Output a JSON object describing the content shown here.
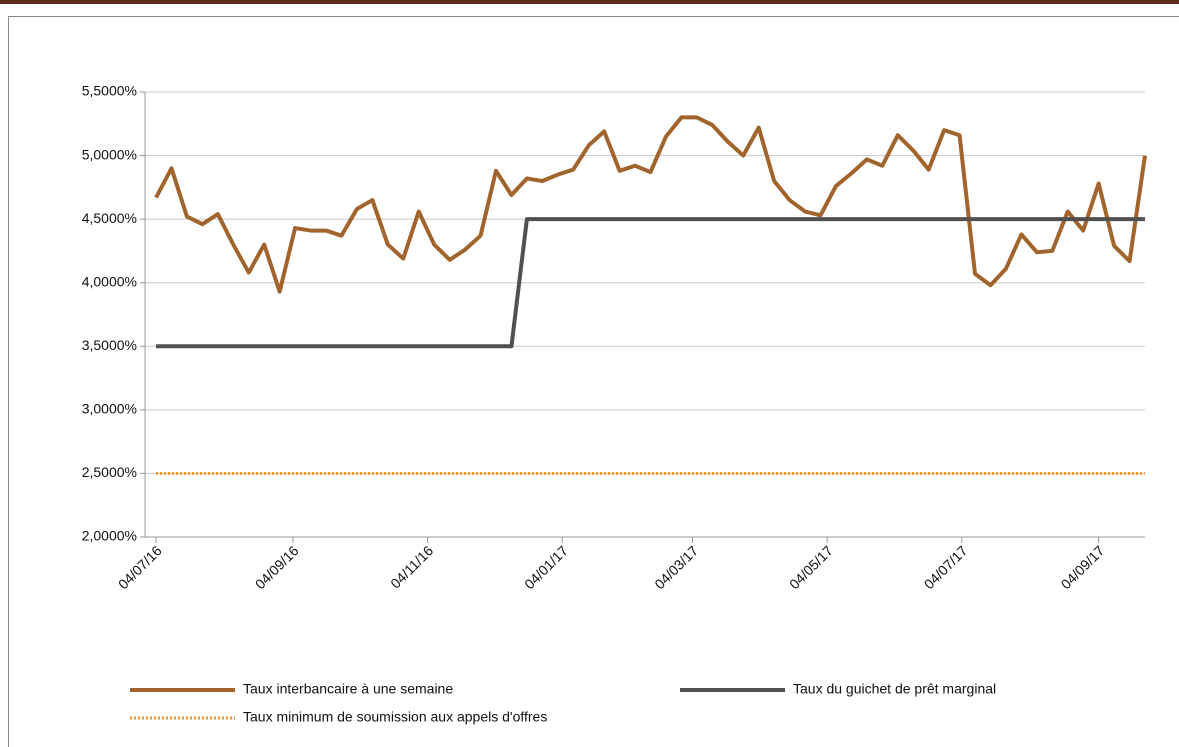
{
  "chart_data": {
    "type": "line",
    "x": [
      "2016-07-04",
      "2016-07-11",
      "2016-07-18",
      "2016-07-25",
      "2016-08-01",
      "2016-08-08",
      "2016-08-15",
      "2016-08-22",
      "2016-08-29",
      "2016-09-05",
      "2016-09-12",
      "2016-09-19",
      "2016-09-26",
      "2016-10-03",
      "2016-10-10",
      "2016-10-17",
      "2016-10-24",
      "2016-10-31",
      "2016-11-07",
      "2016-11-14",
      "2016-11-21",
      "2016-11-28",
      "2016-12-05",
      "2016-12-12",
      "2016-12-19",
      "2016-12-26",
      "2017-01-02",
      "2017-01-09",
      "2017-01-16",
      "2017-01-23",
      "2017-01-30",
      "2017-02-06",
      "2017-02-13",
      "2017-02-20",
      "2017-02-27",
      "2017-03-06",
      "2017-03-13",
      "2017-03-20",
      "2017-03-27",
      "2017-04-03",
      "2017-04-10",
      "2017-04-17",
      "2017-04-24",
      "2017-05-01",
      "2017-05-08",
      "2017-05-15",
      "2017-05-22",
      "2017-05-29",
      "2017-06-05",
      "2017-06-12",
      "2017-06-19",
      "2017-06-26",
      "2017-07-03",
      "2017-07-10",
      "2017-07-17",
      "2017-07-24",
      "2017-07-31",
      "2017-08-07",
      "2017-08-14",
      "2017-08-21",
      "2017-08-28",
      "2017-09-04",
      "2017-09-11",
      "2017-09-18",
      "2017-09-25"
    ],
    "series": [
      {
        "name": "Taux interbancaire à une semaine",
        "color": "#a0642c",
        "style": "solid",
        "values": [
          4.67,
          4.9,
          4.52,
          4.46,
          4.54,
          4.3,
          4.08,
          4.3,
          3.93,
          4.43,
          4.41,
          4.41,
          4.37,
          4.58,
          4.65,
          4.3,
          4.19,
          4.56,
          4.3,
          4.18,
          4.26,
          4.37,
          4.88,
          4.69,
          4.82,
          4.8,
          4.85,
          4.89,
          5.08,
          5.19,
          4.88,
          4.92,
          4.87,
          5.15,
          5.3,
          5.3,
          5.24,
          5.11,
          5.0,
          5.22,
          4.8,
          4.65,
          4.56,
          4.53,
          4.76,
          4.86,
          4.97,
          4.92,
          5.16,
          5.04,
          4.89,
          5.2,
          5.16,
          4.07,
          3.98,
          4.11,
          4.38,
          4.24,
          4.25,
          4.56,
          4.41,
          4.78,
          4.29,
          4.17,
          5.0
        ]
      },
      {
        "name": "Taux du guichet de prêt marginal",
        "color": "#505050",
        "style": "solid",
        "values": [
          3.5,
          3.5,
          3.5,
          3.5,
          3.5,
          3.5,
          3.5,
          3.5,
          3.5,
          3.5,
          3.5,
          3.5,
          3.5,
          3.5,
          3.5,
          3.5,
          3.5,
          3.5,
          3.5,
          3.5,
          3.5,
          3.5,
          3.5,
          3.5,
          4.5,
          4.5,
          4.5,
          4.5,
          4.5,
          4.5,
          4.5,
          4.5,
          4.5,
          4.5,
          4.5,
          4.5,
          4.5,
          4.5,
          4.5,
          4.5,
          4.5,
          4.5,
          4.5,
          4.5,
          4.5,
          4.5,
          4.5,
          4.5,
          4.5,
          4.5,
          4.5,
          4.5,
          4.5,
          4.5,
          4.5,
          4.5,
          4.5,
          4.5,
          4.5,
          4.5,
          4.5,
          4.5,
          4.5,
          4.5,
          4.5
        ]
      },
      {
        "name": "Taux minimum de soumission aux appels d'offres",
        "color": "#f39a2e",
        "style": "dotted",
        "values": [
          2.5,
          2.5,
          2.5,
          2.5,
          2.5,
          2.5,
          2.5,
          2.5,
          2.5,
          2.5,
          2.5,
          2.5,
          2.5,
          2.5,
          2.5,
          2.5,
          2.5,
          2.5,
          2.5,
          2.5,
          2.5,
          2.5,
          2.5,
          2.5,
          2.5,
          2.5,
          2.5,
          2.5,
          2.5,
          2.5,
          2.5,
          2.5,
          2.5,
          2.5,
          2.5,
          2.5,
          2.5,
          2.5,
          2.5,
          2.5,
          2.5,
          2.5,
          2.5,
          2.5,
          2.5,
          2.5,
          2.5,
          2.5,
          2.5,
          2.5,
          2.5,
          2.5,
          2.5,
          2.5,
          2.5,
          2.5,
          2.5,
          2.5,
          2.5,
          2.5,
          2.5,
          2.5,
          2.5,
          2.5,
          2.5
        ]
      }
    ],
    "xlim": [
      "2016-06-29",
      "2017-09-25"
    ],
    "xticks": [
      {
        "value": "2016-07-04",
        "label": "04/07/16"
      },
      {
        "value": "2016-09-04",
        "label": "04/09/16"
      },
      {
        "value": "2016-11-04",
        "label": "04/11/16"
      },
      {
        "value": "2017-01-04",
        "label": "04/01/17"
      },
      {
        "value": "2017-03-04",
        "label": "04/03/17"
      },
      {
        "value": "2017-05-04",
        "label": "04/05/17"
      },
      {
        "value": "2017-07-04",
        "label": "04/07/17"
      },
      {
        "value": "2017-09-04",
        "label": "04/09/17"
      }
    ],
    "ylim": [
      2.0,
      5.5
    ],
    "yticks": [
      {
        "value": 2.0,
        "label": "2,0000%"
      },
      {
        "value": 2.5,
        "label": "2,5000%"
      },
      {
        "value": 3.0,
        "label": "3,0000%"
      },
      {
        "value": 3.5,
        "label": "3,5000%"
      },
      {
        "value": 4.0,
        "label": "4,0000%"
      },
      {
        "value": 4.5,
        "label": "4,5000%"
      },
      {
        "value": 5.0,
        "label": "5,0000%"
      },
      {
        "value": 5.5,
        "label": "5,5000%"
      }
    ],
    "grid": true,
    "legend": "bottom"
  }
}
